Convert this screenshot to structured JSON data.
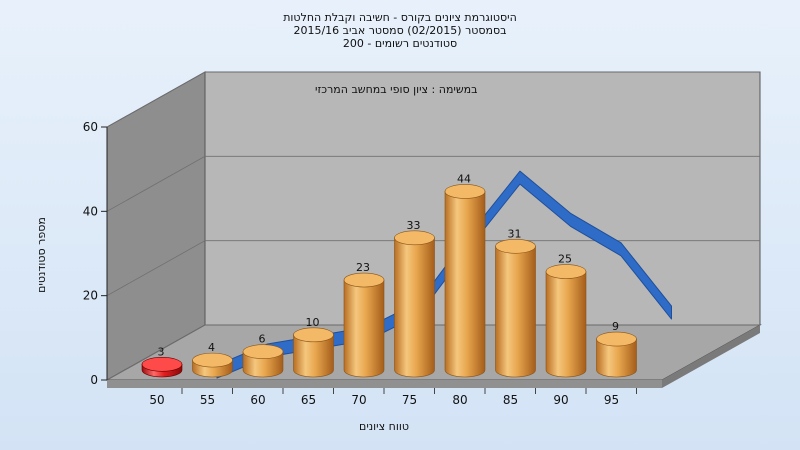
{
  "titles": {
    "line1": "היסטוגרמת ציונים בקורס - חשיבה וקבלת החלטות",
    "line2": "בסמסטר  (02/2015)  סמסטר אביב 2015/16",
    "line3": "סטודנטים רשומים - 200"
  },
  "chart_data": {
    "type": "bar",
    "annotation": "במשימה : ציון סופי במחשב המרכזי",
    "xlabel": "טווח ציונים",
    "ylabel": "מספר סטודנטים",
    "categories": [
      "50",
      "55",
      "60",
      "65",
      "70",
      "75",
      "80",
      "85",
      "90",
      "95"
    ],
    "series": [
      {
        "values": [
          3,
          4,
          6,
          10,
          23,
          33,
          44,
          31,
          25,
          9
        ]
      }
    ],
    "curve_values": [
      2,
      7,
      9,
      11,
      17,
      33,
      48,
      38,
      31,
      16
    ],
    "ylim": [
      0,
      60
    ],
    "y_ticks": [
      "0",
      "20",
      "40",
      "60"
    ],
    "x_ticks": [
      "50",
      "55",
      "60",
      "65",
      "70",
      "75",
      "80",
      "85",
      "90",
      "95"
    ],
    "grid": true,
    "colors": {
      "bar": "#e2a24b",
      "bar_highlight": "#e02020",
      "curve": "#2f6cc8",
      "back_wall": "#b7b7b7",
      "side_wall": "#8e8e8e",
      "floor": "#a7a7a7"
    }
  }
}
